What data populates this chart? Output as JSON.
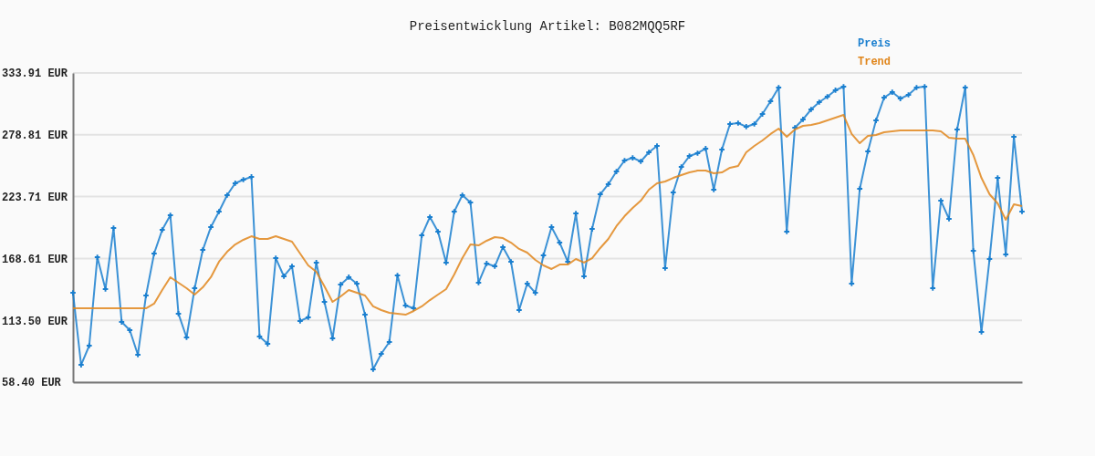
{
  "chart_data": {
    "type": "line",
    "title": "Preisentwicklung Artikel: B082MQQ5RF",
    "categories": [
      null,
      null,
      null,
      null,
      null,
      null,
      null,
      null,
      null,
      null,
      null,
      null,
      null,
      null,
      null,
      null,
      null,
      null,
      null,
      null,
      null,
      null,
      null,
      null,
      null,
      null,
      null,
      null,
      null,
      null,
      null,
      null,
      null,
      null,
      null,
      null,
      null,
      null,
      null,
      null,
      null,
      null,
      null,
      null,
      null,
      null,
      null,
      null,
      null,
      null,
      null,
      null,
      null,
      null,
      null,
      null,
      null,
      null,
      null,
      null,
      null,
      null,
      null,
      null,
      null,
      null,
      null,
      null,
      null,
      null,
      null,
      null,
      null,
      null,
      null,
      null,
      null,
      null,
      null,
      null,
      null,
      null,
      null,
      null,
      null,
      null,
      null,
      null,
      null,
      null,
      null,
      null,
      null,
      null,
      null,
      null,
      null,
      null,
      null,
      null,
      null,
      null,
      null,
      null,
      null,
      null,
      null,
      null,
      null,
      null,
      null,
      null,
      null,
      null,
      null,
      null,
      null,
      null
    ],
    "series": [
      {
        "name": "Preis",
        "color": "#1a7fcf",
        "marker": "cross",
        "values": [
          138.0,
          73.8,
          90.9,
          169.7,
          141.3,
          195.7,
          112.0,
          104.7,
          82.8,
          135.6,
          173.0,
          194.1,
          207.1,
          119.4,
          98.2,
          142.1,
          176.2,
          196.6,
          210.4,
          225.0,
          235.6,
          238.8,
          241.3,
          99.0,
          92.5,
          168.9,
          152.7,
          161.6,
          112.9,
          116.1,
          164.9,
          129.9,
          97.4,
          145.4,
          151.9,
          146.2,
          118.5,
          69.8,
          83.6,
          94.2,
          153.5,
          126.7,
          124.2,
          189.2,
          205.5,
          192.5,
          164.9,
          210.4,
          225.0,
          218.5,
          147.0,
          164.1,
          161.6,
          178.7,
          165.7,
          122.6,
          146.2,
          138.0,
          171.4,
          196.6,
          182.7,
          165.7,
          208.7,
          152.7,
          194.9,
          225.8,
          234.8,
          246.1,
          255.9,
          258.3,
          255.1,
          263.2,
          268.9,
          160.0,
          227.4,
          250.2,
          259.9,
          262.4,
          266.5,
          229.9,
          265.6,
          288.4,
          289.2,
          286.0,
          288.4,
          297.3,
          308.7,
          320.9,
          192.5,
          285.1,
          292.5,
          301.4,
          307.9,
          312.8,
          318.5,
          321.7,
          146.2,
          230.7,
          264.0,
          291.6,
          312.0,
          316.8,
          311.1,
          314.4,
          320.9,
          321.7,
          142.1,
          220.1,
          203.9,
          283.5,
          320.9,
          175.4,
          103.1,
          168.1,
          240.4,
          172.2,
          277.0,
          210.4
        ]
      },
      {
        "name": "Trend",
        "color": "#e0861c",
        "marker": "none",
        "values": [
          124.2,
          124.2,
          124.2,
          124.2,
          124.2,
          124.2,
          124.2,
          124.2,
          124.2,
          124.2,
          128.3,
          140.5,
          151.9,
          147.0,
          142.1,
          136.4,
          142.9,
          151.9,
          165.7,
          174.6,
          181.1,
          185.2,
          188.4,
          186.0,
          186.0,
          188.4,
          186.0,
          183.6,
          173.0,
          162.4,
          156.7,
          143.7,
          129.9,
          134.8,
          140.5,
          138.0,
          135.6,
          125.9,
          122.6,
          120.2,
          119.4,
          118.5,
          121.8,
          125.9,
          131.5,
          136.4,
          141.3,
          154.3,
          168.9,
          181.1,
          180.3,
          184.4,
          187.6,
          186.8,
          182.7,
          177.1,
          173.8,
          167.3,
          162.4,
          159.2,
          163.2,
          163.2,
          168.1,
          164.9,
          168.9,
          177.9,
          186.0,
          197.4,
          206.3,
          213.6,
          220.1,
          229.9,
          235.6,
          237.2,
          240.4,
          242.9,
          245.3,
          246.9,
          246.9,
          244.5,
          245.3,
          249.4,
          251.0,
          263.2,
          268.9,
          273.8,
          279.5,
          284.3,
          277.0,
          283.5,
          286.8,
          287.6,
          289.2,
          291.6,
          294.1,
          296.5,
          279.5,
          271.3,
          277.8,
          278.6,
          281.1,
          281.9,
          282.7,
          282.7,
          282.7,
          282.7,
          282.7,
          281.9,
          276.2,
          275.4,
          275.4,
          260.8,
          240.4,
          225.8,
          217.7,
          203.1,
          216.9,
          215.3
        ]
      }
    ],
    "ylim": [
      58.4,
      333.91
    ],
    "yticks": [
      {
        "value": 58.4,
        "label": "58.40 EUR"
      },
      {
        "value": 113.5,
        "label": "113.50 EUR"
      },
      {
        "value": 168.61,
        "label": "168.61 EUR"
      },
      {
        "value": 223.71,
        "label": "223.71 EUR"
      },
      {
        "value": 278.81,
        "label": "278.81 EUR"
      },
      {
        "value": 333.91,
        "label": "333.91 EUR"
      }
    ],
    "grid": "y",
    "legend": "top right",
    "line_style": "solid"
  }
}
